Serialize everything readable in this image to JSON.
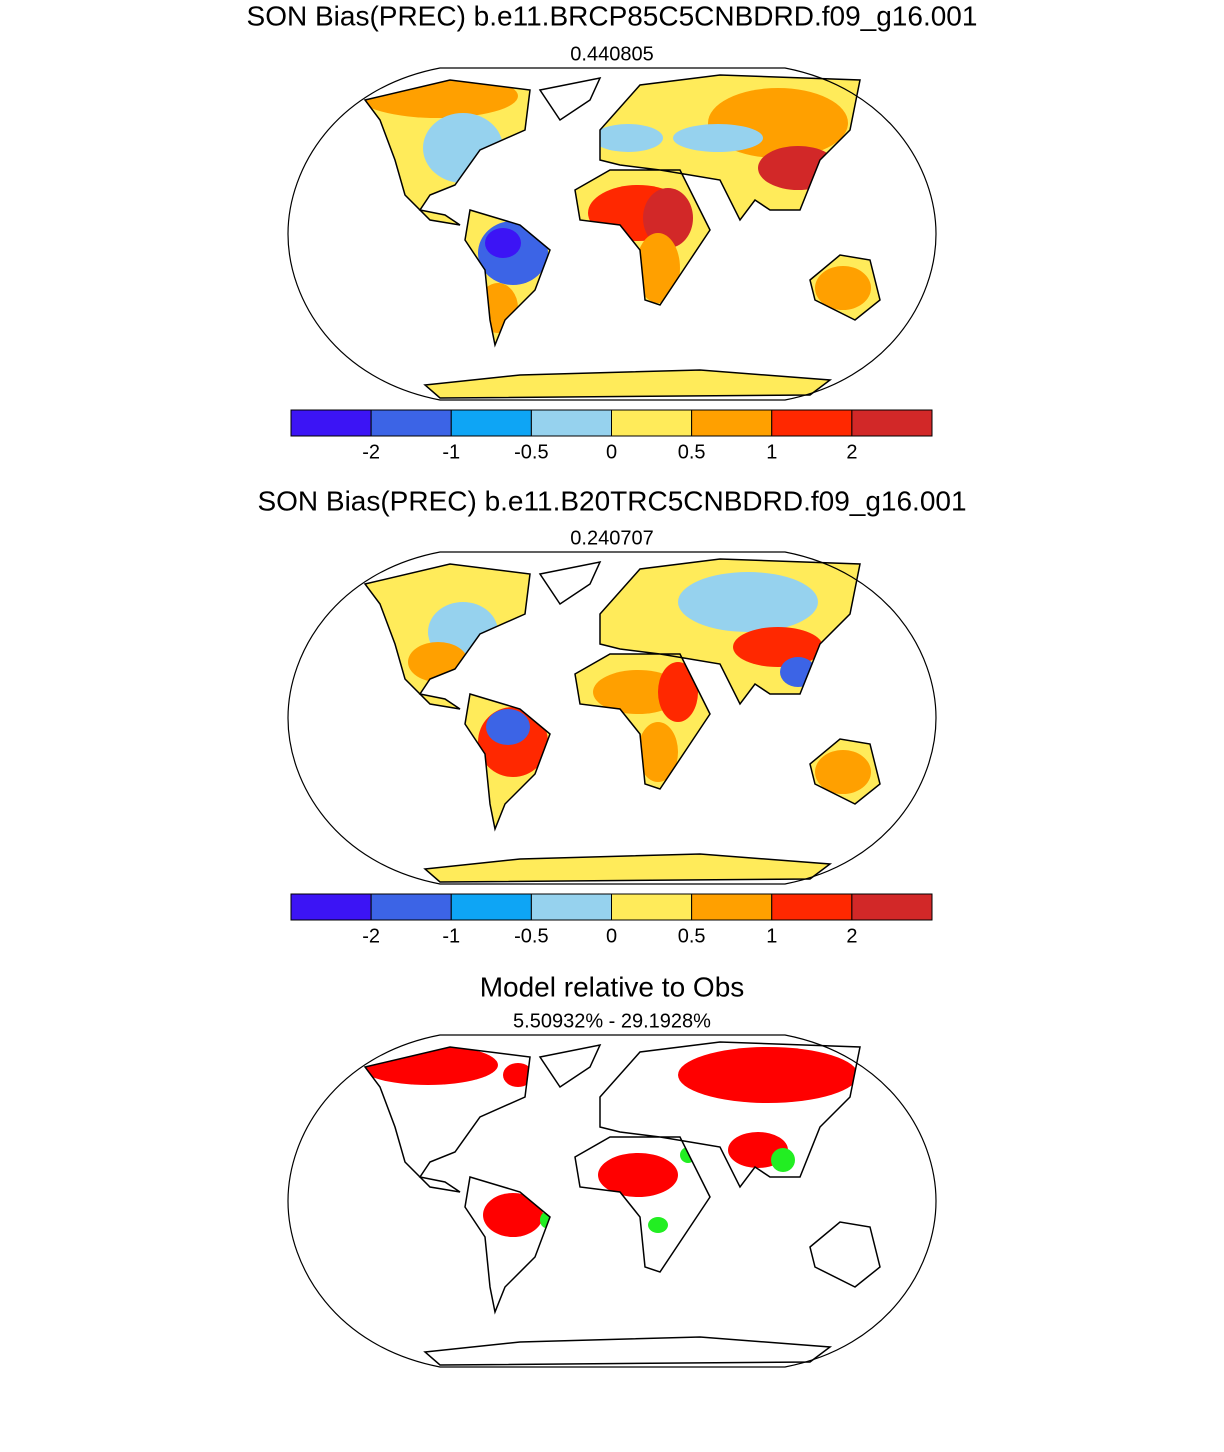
{
  "panels": [
    {
      "title": "SON Bias(PREC) b.e11.BRCP85C5CNBDRD.f09_g16.001",
      "subtitle": "0.440805",
      "colorbar": {
        "colors": [
          "#3c14f5",
          "#3c64e6",
          "#0ea5f5",
          "#96d2ee",
          "#ffeb5a",
          "#ffa000",
          "#ff2800",
          "#d22828"
        ],
        "ticks": [
          -2,
          -1,
          -0.5,
          0,
          0.5,
          1,
          2
        ]
      }
    },
    {
      "title": "SON Bias(PREC) b.e11.B20TRC5CNBDRD.f09_g16.001",
      "subtitle": "0.240707",
      "colorbar": {
        "colors": [
          "#3c14f5",
          "#3c64e6",
          "#0ea5f5",
          "#96d2ee",
          "#ffeb5a",
          "#ffa000",
          "#ff2800",
          "#d22828"
        ],
        "ticks": [
          -2,
          -1,
          -0.5,
          0,
          0.5,
          1,
          2
        ]
      }
    },
    {
      "title": "Model relative to Obs",
      "subtitle": "5.50932% - 29.1928%"
    }
  ]
}
